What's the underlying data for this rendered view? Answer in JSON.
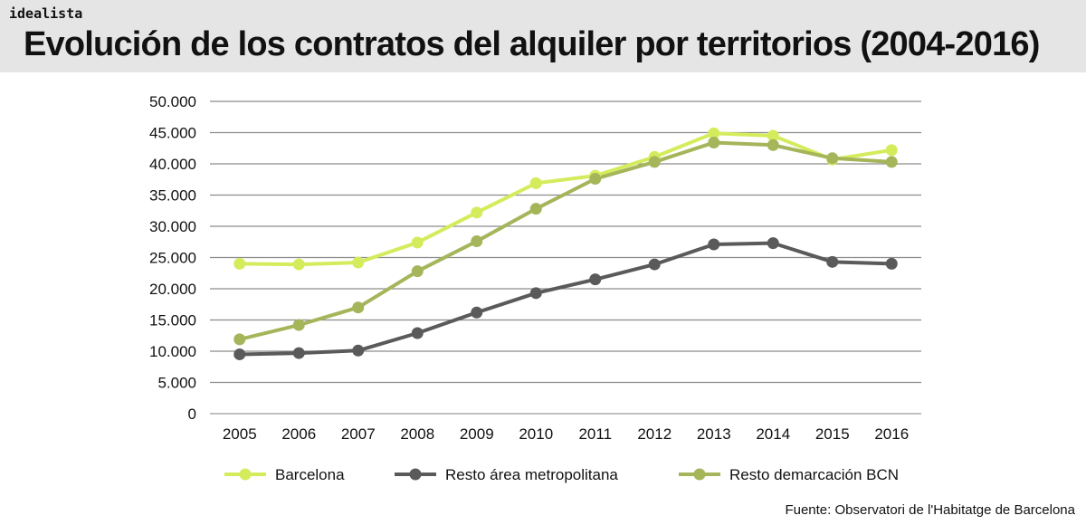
{
  "header": {
    "brand": "idealista",
    "title": "Evolución de los contratos del alquiler por territorios (2004-2016)"
  },
  "source": "Fuente: Observatori de l'Habitatge de Barcelona",
  "chart_data": {
    "type": "line",
    "title": "Evolución de los contratos del alquiler por territorios (2004-2016)",
    "xlabel": "",
    "ylabel": "",
    "x": [
      "2005",
      "2006",
      "2007",
      "2008",
      "2009",
      "2010",
      "2011",
      "2012",
      "2013",
      "2014",
      "2015",
      "2016"
    ],
    "ylim": [
      0,
      50000
    ],
    "yticks": [
      0,
      5000,
      10000,
      15000,
      20000,
      25000,
      30000,
      35000,
      40000,
      45000,
      50000
    ],
    "ytick_labels": [
      "0",
      "5.000",
      "10.000",
      "15.000",
      "20.000",
      "25.000",
      "30.000",
      "35.000",
      "40.000",
      "45.000",
      "50.000"
    ],
    "grid": "horizontal",
    "legend": "bottom",
    "series": [
      {
        "name": "Barcelona",
        "color": "#d4ec5c",
        "values": [
          24000,
          23900,
          24200,
          27400,
          32200,
          36900,
          38100,
          41100,
          44900,
          44500,
          40700,
          42200
        ]
      },
      {
        "name": "Resto área metropolitana",
        "color": "#5a5a5a",
        "values": [
          9500,
          9700,
          10100,
          12900,
          16200,
          19300,
          21500,
          23900,
          27100,
          27300,
          24300,
          24000
        ]
      },
      {
        "name": "Resto demarcación BCN",
        "color": "#a4b55a",
        "values": [
          11900,
          14200,
          17000,
          22800,
          27600,
          32800,
          37600,
          40300,
          43400,
          43000,
          40900,
          40300
        ]
      }
    ]
  }
}
